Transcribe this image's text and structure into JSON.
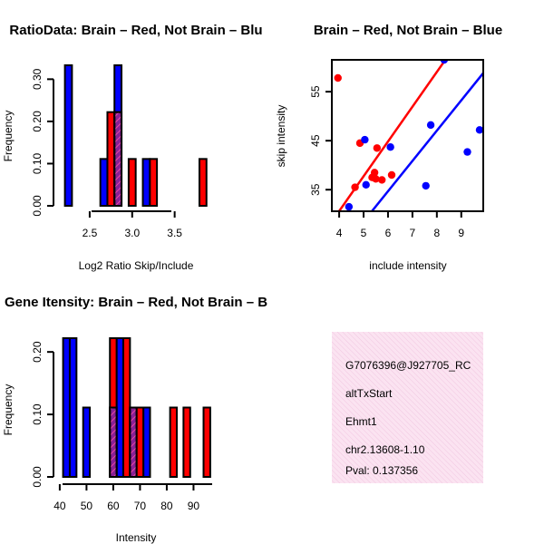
{
  "chart_data": [
    {
      "type": "bar",
      "id": "ratio-hist",
      "title": "RatioData: Brain – Red, Not Brain – Blu",
      "xlabel": "Log2 Ratio Skip/Include",
      "ylabel": "Frequency",
      "xlim": [
        2.17,
        3.92
      ],
      "ylim": [
        0,
        0.333
      ],
      "xticks": [
        2.5,
        3.0,
        3.5
      ],
      "xtick_labels": [
        "2.5",
        "3.0",
        "3.5"
      ],
      "yticks": [
        0,
        0.1,
        0.2,
        0.3
      ],
      "ytick_labels": [
        "0.00",
        "0.10",
        "0.20",
        "0.30"
      ],
      "bin_width": 0.083,
      "series": [
        {
          "name": "Not Brain",
          "color": "#0000ff",
          "bins": [
            {
              "x": 2.25,
              "value": 0.333
            },
            {
              "x": 2.667,
              "value": 0.111
            },
            {
              "x": 2.833,
              "value": 0.333
            },
            {
              "x": 3.167,
              "value": 0.111
            }
          ]
        },
        {
          "name": "Brain",
          "color": "#ff0000",
          "bins": [
            {
              "x": 2.75,
              "value": 0.222
            },
            {
              "x": 2.833,
              "value": 0.222
            },
            {
              "x": 3.0,
              "value": 0.111
            },
            {
              "x": 3.25,
              "value": 0.111
            },
            {
              "x": 3.833,
              "value": 0.111
            }
          ]
        }
      ],
      "overlap_color": "#8a1f96"
    },
    {
      "type": "scatter",
      "id": "scatter",
      "title": "Brain – Red, Not Brain – Blue",
      "xlabel": "include intensity",
      "ylabel": "skip intensity",
      "xlim": [
        3.7,
        9.9
      ],
      "ylim": [
        30.6,
        61.5
      ],
      "xticks": [
        4,
        5,
        6,
        7,
        8,
        9
      ],
      "yticks": [
        35,
        45,
        55
      ],
      "series": [
        {
          "name": "Brain",
          "color": "#ff0000",
          "points": [
            [
              3.95,
              57.8
            ],
            [
              4.65,
              35.5
            ],
            [
              4.85,
              44.5
            ],
            [
              5.35,
              37.5
            ],
            [
              5.45,
              38.5
            ],
            [
              5.5,
              37.2
            ],
            [
              5.55,
              43.5
            ],
            [
              5.75,
              37.0
            ],
            [
              6.15,
              38.0
            ]
          ],
          "fit": [
            [
              3.7,
              28.5
            ],
            [
              8.7,
              64.0
            ]
          ]
        },
        {
          "name": "Not Brain",
          "color": "#0000ff",
          "points": [
            [
              4.4,
              31.5
            ],
            [
              5.05,
              45.2
            ],
            [
              5.1,
              36.0
            ],
            [
              6.1,
              43.7
            ],
            [
              7.55,
              35.8
            ],
            [
              7.75,
              48.2
            ],
            [
              8.3,
              61.5
            ],
            [
              9.25,
              42.7
            ],
            [
              9.75,
              47.2
            ]
          ],
          "fit": [
            [
              5.0,
              28.5
            ],
            [
              9.9,
              58.8
            ]
          ]
        }
      ]
    },
    {
      "type": "bar",
      "id": "intensity-hist",
      "title": "Gene Itensity: Brain – Red, Not Brain – B",
      "xlabel": "Intensity",
      "ylabel": "Frequency",
      "xlim": [
        38,
        99
      ],
      "ylim": [
        0,
        0.222
      ],
      "xticks": [
        40,
        50,
        60,
        70,
        80,
        90
      ],
      "xtick_labels": [
        "40",
        "50",
        "60",
        "70",
        "80",
        "90"
      ],
      "yticks": [
        0,
        0.1,
        0.2
      ],
      "ytick_labels": [
        "0.00",
        "0.10",
        "0.20"
      ],
      "bin_width": 2.5,
      "series": [
        {
          "name": "Not Brain",
          "color": "#0000ff",
          "bins": [
            {
              "x": 42.5,
              "value": 0.222
            },
            {
              "x": 45,
              "value": 0.222
            },
            {
              "x": 50,
              "value": 0.111
            },
            {
              "x": 60,
              "value": 0.111
            },
            {
              "x": 62.5,
              "value": 0.222
            },
            {
              "x": 67.5,
              "value": 0.111
            },
            {
              "x": 72.5,
              "value": 0.111
            }
          ]
        },
        {
          "name": "Brain",
          "color": "#ff0000",
          "bins": [
            {
              "x": 60,
              "value": 0.222
            },
            {
              "x": 65,
              "value": 0.222
            },
            {
              "x": 67.5,
              "value": 0.111
            },
            {
              "x": 70,
              "value": 0.111
            },
            {
              "x": 82.5,
              "value": 0.111
            },
            {
              "x": 87.5,
              "value": 0.111
            },
            {
              "x": 95,
              "value": 0.111
            }
          ]
        }
      ],
      "overlap_color": "#8a1f96"
    }
  ],
  "info_panel": {
    "background": "#f6dcee",
    "lines": [
      "G7076396@J927705_RC",
      "altTxStart",
      "Ehmt1",
      "chr2.13608-1.10"
    ],
    "pval": "Pval: 0.137356",
    "pval_color": "#aa0000"
  }
}
